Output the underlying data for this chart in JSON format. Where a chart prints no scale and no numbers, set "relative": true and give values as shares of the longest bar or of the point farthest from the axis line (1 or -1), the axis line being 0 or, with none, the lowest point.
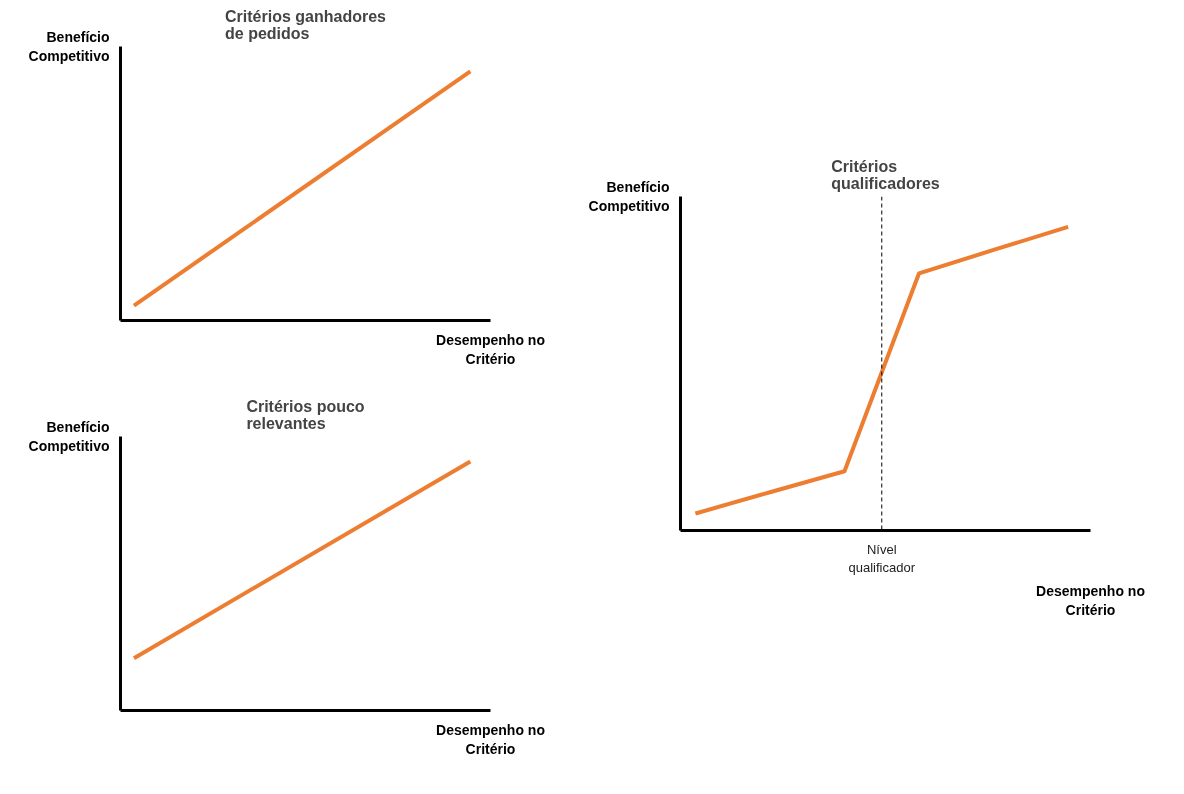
{
  "chart_data": [
    {
      "type": "line",
      "title": "Critérios ganhadores de pedidos",
      "ylabel": "Benefício Competitivo",
      "xlabel": "Desempenho no Critério",
      "relative": true,
      "categories": [
        null,
        null
      ],
      "tick_labels": false,
      "grid": false,
      "series": [
        {
          "color": "#ed7d31",
          "values": [
            0.06,
            1
          ]
        }
      ]
    },
    {
      "type": "line",
      "title": "Critérios pouco relevantes",
      "ylabel": "Benefício Competitivo",
      "xlabel": "Desempenho no Critério",
      "relative": true,
      "categories": [
        null,
        null
      ],
      "tick_labels": false,
      "grid": false,
      "series": [
        {
          "color": "#ed7d31",
          "values": [
            0.21,
            1
          ]
        }
      ]
    },
    {
      "type": "line",
      "title": "Critérios qualificadores",
      "ylabel": "Benefício Competitivo",
      "xlabel": "Desempenho no Critério",
      "relative": true,
      "categories": [
        null,
        null,
        null,
        null,
        null,
        null
      ],
      "tick_labels": false,
      "grid": false,
      "series": [
        {
          "color": "#ed7d31",
          "values": [
            0.056,
            0.126,
            0.195,
            0.847,
            0.924,
            1
          ]
        }
      ],
      "annotations": [
        "Nível qualificador"
      ]
    }
  ]
}
